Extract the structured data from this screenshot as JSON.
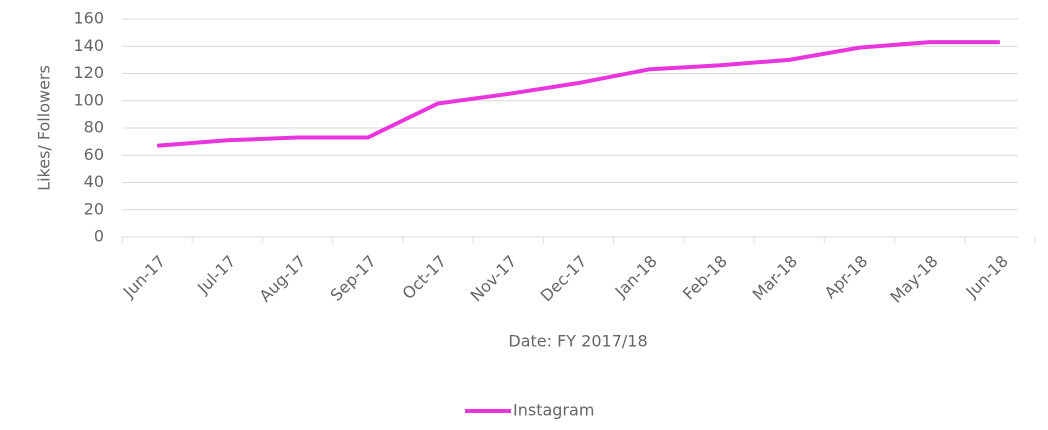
{
  "chart_data": {
    "type": "line",
    "categories": [
      "Jun-17",
      "Jul-17",
      "Aug-17",
      "Sep-17",
      "Oct-17",
      "Nov-17",
      "Dec-17",
      "Jan-18",
      "Feb-18",
      "Mar-18",
      "Apr-18",
      "May-18",
      "Jun-18"
    ],
    "series": [
      {
        "name": "Instagram",
        "color": "#e935de",
        "values": [
          67,
          71,
          73,
          73,
          98,
          105,
          113,
          123,
          126,
          130,
          139,
          143,
          143
        ]
      }
    ],
    "xlabel": "Date: FY 2017/18",
    "ylabel": "Likes/ Followers",
    "ylim": [
      0,
      160
    ],
    "yticks": [
      0,
      20,
      40,
      60,
      80,
      100,
      120,
      140,
      160
    ],
    "grid": true,
    "legend": "bottom"
  }
}
